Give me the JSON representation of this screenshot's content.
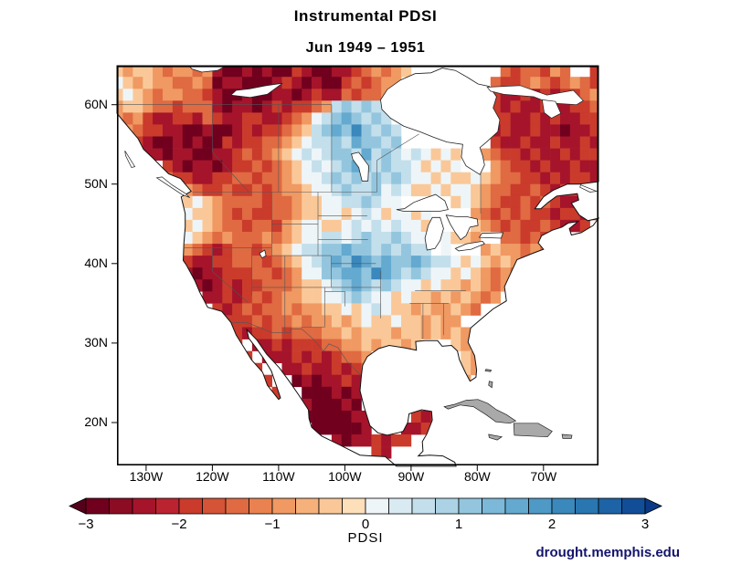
{
  "header": {
    "title": "Instrumental PDSI",
    "subtitle": "Jun 1949 – 1951"
  },
  "footer": {
    "credit": "drought.memphis.edu",
    "credit_color": "#14146e"
  },
  "axes": {
    "lat_ticks": [
      {
        "label": "60N",
        "value": 60
      },
      {
        "label": "50N",
        "value": 50
      },
      {
        "label": "40N",
        "value": 40
      },
      {
        "label": "30N",
        "value": 30
      },
      {
        "label": "20N",
        "value": 20
      }
    ],
    "lon_ticks": [
      {
        "label": "130W",
        "value": -130
      },
      {
        "label": "120W",
        "value": -120
      },
      {
        "label": "110W",
        "value": -110
      },
      {
        "label": "100W",
        "value": -100
      },
      {
        "label": "90W",
        "value": -90
      },
      {
        "label": "80W",
        "value": -80
      },
      {
        "label": "70W",
        "value": -70
      }
    ]
  },
  "colorbar": {
    "label": "PDSI",
    "min": -3,
    "max": 3,
    "tick_labels": [
      "−3",
      "−2",
      "−1",
      "0",
      "1",
      "2",
      "3"
    ],
    "tick_values": [
      -3,
      -2,
      -1,
      0,
      1,
      2,
      3
    ],
    "left_cap": "#54001b",
    "right_cap": "#0a3a85",
    "no_data_color": "#a9a9a9",
    "palette": [
      "#70001e",
      "#8c0c24",
      "#a5142a",
      "#bb2330",
      "#ca3b2c",
      "#d55336",
      "#e06a42",
      "#e98250",
      "#f09962",
      "#f6b17b",
      "#fac898",
      "#fddfba",
      "#eef5f8",
      "#d9eaf2",
      "#c3dfec",
      "#abd3e5",
      "#93c6de",
      "#7cb8d7",
      "#64a9cf",
      "#4e99c6",
      "#3a88bc",
      "#2a76b0",
      "#1d63a5",
      "#114e97"
    ]
  },
  "chart_data": {
    "type": "heatmap",
    "title": "Instrumental PDSI",
    "subtitle": "Jun 1949 – 1951",
    "variable": "PDSI",
    "colorbar_range": [
      -3,
      3
    ],
    "domain": {
      "lon_min": -135,
      "lon_max": -60,
      "lat_min": 15.5,
      "lat_max": 65
    },
    "grid": {
      "cell_size_deg": 1.5,
      "n_cols": 50,
      "n_rows": 33,
      "lon_origin": -135,
      "lat_origin": 65,
      "encoding": {
        "ocean": ".",
        "no_data": "x",
        "values": {
          "A": -3,
          "B": -2.5,
          "C": -2,
          "D": -1.5,
          "E": -1,
          "F": -0.5,
          "G": 0,
          "H": 0.5,
          "I": 1,
          "J": 1.5,
          "K": 2,
          "L": 2.5,
          "M": 3
        }
      },
      "rows": [
        "FEFFEDEEDEBAABABAACBAABBCDEDEF.........DCDDCED..CB",
        "GFEFEEDDEDABBAAABCBABAACDCDEE.........DCCDEDCDEDC.",
        "FGFEDEEDDCBAABAABBABCBBDCDDEE.........CBBCBCBCCDE.",
        "EFFEDDCDDDBABBABCBCCDEHIHIHH..........CBCBBCBBCCDC",
        "EDECBBCCBDCBBCCBBCDEGHIJIHIH..........CCBBCBCBBCCD",
        "DEDCCBBAABAABCBCCDEFHIJIKIHIH.........BCBBCBBABBCC",
        "EDCBAABABAACBCCDDEFGHHIHJIIHI.........CBBCBBCBBCBC",
        "DCDBBABBAABBCDCDEFGHGHIIHJHIHGHGFGF..EDCCBCBBCBCCB",
        ".....CBABBABCCDCDEFGHGHIJIHIHHGFGFG...EDCCBCBBCBBC",
        ".....DCCBBCCDDCDDEFGGHIHIHIHIHGGFGFFGFEDDCCBCBCCBB",
        ".....FEEDCCDCCDCDEEFGGHIHHIGHGFFGFGGFEDDCCDCBCCBCB",
        "......GFGFEDDDDCDDEFFGGHHIHGG.....FGFEDCCDCDCBBC..",
        "......FGFFEDCDCCDDEFFGGFGHGFGGFG....EDCDCDCCBCCBC.",
        "......GFGFEDDCDDCEFGGFFGHGHGHGGF....FEDCDCCDCBBC..",
        ".......GFEDEDDDEDEFGGHHGHIHHIHGG.GFFE..DDCDCDE....",
        "......FEDCBCDDCDEFGHHIIJIIHIHIHH.G...EFEEDEDF.....",
        "......ECBBCCDDDCDEFGHIJIKJIJIIJIHHGFGFEFEDED......",
        ".......BABBCCCDDCDEGGIIJJIKJIHIHGGFGFEDED.........",
        "........BABCBCCDDDEFFGHIJIHIHGGFGFFEFEDE..........",
        ".........BBCBCDCDEEFFGGHIHGGFGFFEFEFEDE...........",
        "..........CBCDCDDEDEEFFGFGHGFFEFEEFED.............",
        "...........CCCDCDDEDEEFEFGFFGFFEFEE...............",
        "...........DCBCCDCDDDEEFEFFFEFFEFEFE..............",
        "............C.BBCBCCCDDEEFEFFEF...FE..............",
        ".............C.BBBCBCBCDDE.........FE.............",
        "..............C..BBCBBCBCD.........FE.............",
        "...............C..ABABBCB..........E.x...........",
        "................C..AAABAB............x............",
        "...................BAAABA.........xxxxx...........",
        "...................AAAAABB....CBC.....xxx.........",
        "....................AAAAAB...BBC......x..xxxxx....",
        "......................BABBCBCCxx..................",
        "..........................CBxxxxxx................"
      ]
    }
  }
}
